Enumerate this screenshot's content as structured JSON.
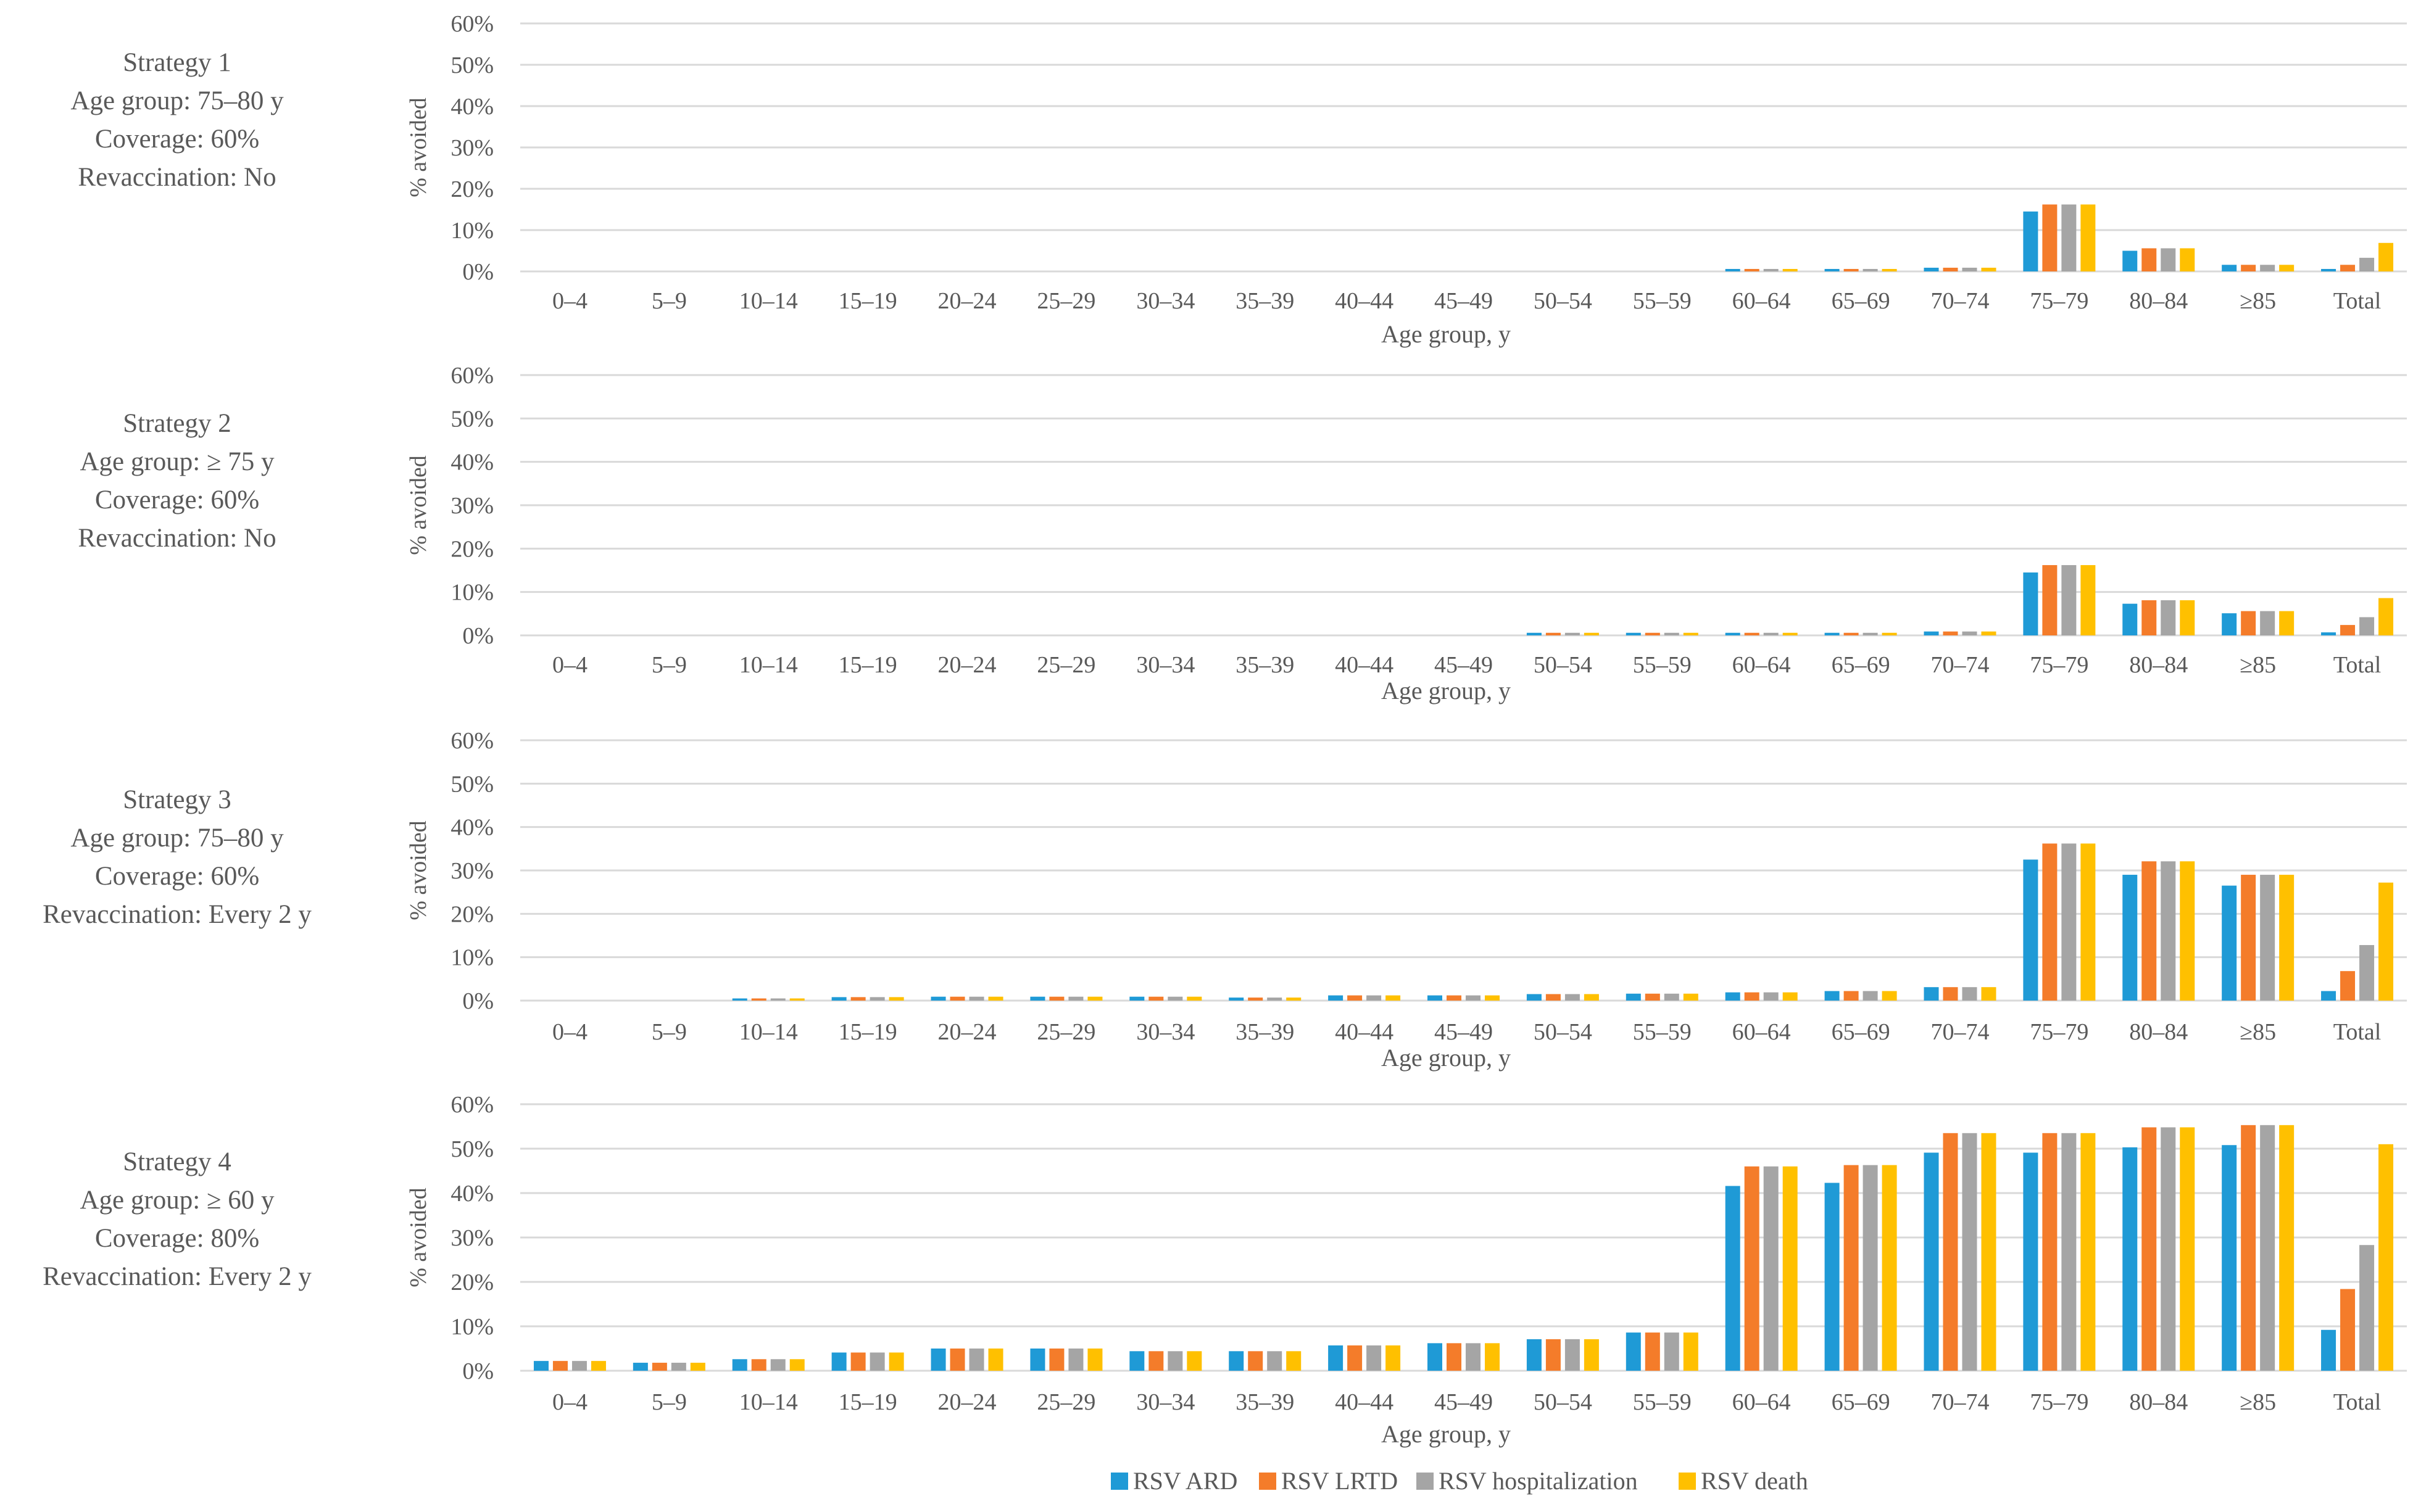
{
  "chart_data": [
    {
      "type": "bar",
      "strategy_label": [
        "Strategy 1",
        "Age group: 75–80 y",
        "Coverage: 60%",
        "Revaccination: No"
      ],
      "xlabel": "Age group, y",
      "ylabel": "% avoided",
      "ylim": [
        0,
        60
      ],
      "yticks": [
        "0%",
        "10%",
        "20%",
        "30%",
        "40%",
        "50%",
        "60%"
      ],
      "grid": true,
      "categories": [
        "0–4",
        "5–9",
        "10–14",
        "15–19",
        "20–24",
        "25–29",
        "30–34",
        "35–39",
        "40–44",
        "45–49",
        "50–54",
        "55–59",
        "60–64",
        "65–69",
        "70–74",
        "75–79",
        "80–84",
        "≥85",
        "Total"
      ],
      "series": [
        {
          "name": "RSV ARD",
          "values": [
            0,
            0,
            0,
            0,
            0,
            0,
            0,
            0,
            0,
            0,
            0,
            0,
            0.6,
            0.6,
            0.9,
            14.5,
            5.0,
            1.6,
            0.6
          ]
        },
        {
          "name": "RSV LRTD",
          "values": [
            0,
            0,
            0,
            0,
            0,
            0,
            0,
            0,
            0,
            0,
            0,
            0,
            0.6,
            0.6,
            0.9,
            16.2,
            5.6,
            1.6,
            1.6
          ]
        },
        {
          "name": "RSV hospitalization",
          "values": [
            0,
            0,
            0,
            0,
            0,
            0,
            0,
            0,
            0,
            0,
            0,
            0,
            0.6,
            0.6,
            0.9,
            16.2,
            5.6,
            1.6,
            3.3
          ]
        },
        {
          "name": "RSV death",
          "values": [
            0,
            0,
            0,
            0,
            0,
            0,
            0,
            0,
            0,
            0,
            0,
            0,
            0.6,
            0.6,
            0.9,
            16.2,
            5.6,
            1.6,
            6.9
          ]
        }
      ]
    },
    {
      "type": "bar",
      "strategy_label": [
        "Strategy 2",
        "Age group: ≥ 75 y",
        "Coverage: 60%",
        "Revaccination: No"
      ],
      "xlabel": "Age group, y",
      "ylabel": "% avoided",
      "ylim": [
        0,
        60
      ],
      "yticks": [
        "0%",
        "10%",
        "20%",
        "30%",
        "40%",
        "50%",
        "60%"
      ],
      "grid": true,
      "categories": [
        "0–4",
        "5–9",
        "10–14",
        "15–19",
        "20–24",
        "25–29",
        "30–34",
        "35–39",
        "40–44",
        "45–49",
        "50–54",
        "55–59",
        "60–64",
        "65–69",
        "70–74",
        "75–79",
        "80–84",
        "≥85",
        "Total"
      ],
      "series": [
        {
          "name": "RSV ARD",
          "values": [
            0,
            0,
            0,
            0,
            0,
            0,
            0,
            0,
            0,
            0,
            0.6,
            0.6,
            0.6,
            0.6,
            0.9,
            14.5,
            7.3,
            5.1,
            0.7
          ]
        },
        {
          "name": "RSV LRTD",
          "values": [
            0,
            0,
            0,
            0,
            0,
            0,
            0,
            0,
            0,
            0,
            0.6,
            0.6,
            0.6,
            0.6,
            0.9,
            16.2,
            8.1,
            5.6,
            2.4
          ]
        },
        {
          "name": "RSV hospitalization",
          "values": [
            0,
            0,
            0,
            0,
            0,
            0,
            0,
            0,
            0,
            0,
            0.6,
            0.6,
            0.6,
            0.6,
            0.9,
            16.2,
            8.1,
            5.6,
            4.2
          ]
        },
        {
          "name": "RSV death",
          "values": [
            0,
            0,
            0,
            0,
            0,
            0,
            0,
            0,
            0,
            0,
            0.6,
            0.6,
            0.6,
            0.6,
            0.9,
            16.2,
            8.1,
            5.6,
            8.6
          ]
        }
      ]
    },
    {
      "type": "bar",
      "strategy_label": [
        "Strategy 3",
        "Age group: 75–80 y",
        "Coverage: 60%",
        "Revaccination: Every 2 y"
      ],
      "xlabel": "Age group, y",
      "ylabel": "% avoided",
      "ylim": [
        0,
        60
      ],
      "yticks": [
        "0%",
        "10%",
        "20%",
        "30%",
        "40%",
        "50%",
        "60%"
      ],
      "grid": true,
      "categories": [
        "0–4",
        "5–9",
        "10–14",
        "15–19",
        "20–24",
        "25–29",
        "30–34",
        "35–39",
        "40–44",
        "45–49",
        "50–54",
        "55–59",
        "60–64",
        "65–69",
        "70–74",
        "75–79",
        "80–84",
        "≥85",
        "Total"
      ],
      "series": [
        {
          "name": "RSV ARD",
          "values": [
            0,
            0,
            0.5,
            0.8,
            0.9,
            0.9,
            0.9,
            0.7,
            1.2,
            1.2,
            1.5,
            1.6,
            1.9,
            2.2,
            3.1,
            32.5,
            29.0,
            26.5,
            2.2
          ]
        },
        {
          "name": "RSV LRTD",
          "values": [
            0,
            0,
            0.5,
            0.8,
            0.9,
            0.9,
            0.9,
            0.7,
            1.2,
            1.2,
            1.5,
            1.6,
            1.9,
            2.2,
            3.1,
            36.2,
            32.1,
            29.0,
            6.8
          ]
        },
        {
          "name": "RSV hospitalization",
          "values": [
            0,
            0,
            0.5,
            0.8,
            0.9,
            0.9,
            0.9,
            0.7,
            1.2,
            1.2,
            1.5,
            1.6,
            1.9,
            2.2,
            3.1,
            36.2,
            32.1,
            29.0,
            12.8
          ]
        },
        {
          "name": "RSV death",
          "values": [
            0,
            0,
            0.5,
            0.8,
            0.9,
            0.9,
            0.9,
            0.7,
            1.2,
            1.2,
            1.5,
            1.6,
            1.9,
            2.2,
            3.1,
            36.2,
            32.1,
            29.0,
            27.2
          ]
        }
      ]
    },
    {
      "type": "bar",
      "strategy_label": [
        "Strategy 4",
        "Age group: ≥ 60 y",
        "Coverage: 80%",
        "Revaccination: Every 2 y"
      ],
      "xlabel": "Age group, y",
      "ylabel": "% avoided",
      "ylim": [
        0,
        60
      ],
      "yticks": [
        "0%",
        "10%",
        "20%",
        "30%",
        "40%",
        "50%",
        "60%"
      ],
      "grid": true,
      "categories": [
        "0–4",
        "5–9",
        "10–14",
        "15–19",
        "20–24",
        "25–29",
        "30–34",
        "35–39",
        "40–44",
        "45–49",
        "50–54",
        "55–59",
        "60–64",
        "65–69",
        "70–74",
        "75–79",
        "80–84",
        "≥85",
        "Total"
      ],
      "series": [
        {
          "name": "RSV ARD",
          "values": [
            2.2,
            1.8,
            2.6,
            4.1,
            5.0,
            5.0,
            4.4,
            4.4,
            5.7,
            6.2,
            7.1,
            8.6,
            41.6,
            42.3,
            49.1,
            49.1,
            50.3,
            50.8,
            9.2
          ]
        },
        {
          "name": "RSV LRTD",
          "values": [
            2.2,
            1.8,
            2.6,
            4.1,
            5.0,
            5.0,
            4.4,
            4.4,
            5.7,
            6.2,
            7.1,
            8.6,
            46.0,
            46.3,
            53.5,
            53.5,
            54.8,
            55.3,
            18.4
          ]
        },
        {
          "name": "RSV hospitalization",
          "values": [
            2.2,
            1.8,
            2.6,
            4.1,
            5.0,
            5.0,
            4.4,
            4.4,
            5.7,
            6.2,
            7.1,
            8.6,
            46.0,
            46.3,
            53.5,
            53.5,
            54.8,
            55.3,
            28.3
          ]
        },
        {
          "name": "RSV death",
          "values": [
            2.2,
            1.8,
            2.6,
            4.1,
            5.0,
            5.0,
            4.4,
            4.4,
            5.7,
            6.2,
            7.1,
            8.6,
            46.0,
            46.3,
            53.5,
            53.5,
            54.8,
            55.3,
            51.0
          ]
        }
      ]
    }
  ],
  "legend": {
    "placement": "bottom-center",
    "items": [
      {
        "label": "RSV ARD",
        "color": "#1f9ad6"
      },
      {
        "label": "RSV LRTD",
        "color": "#f47c2a"
      },
      {
        "label": "RSV hospitalization",
        "color": "#a5a5a5"
      },
      {
        "label": "RSV death",
        "color": "#ffc000"
      }
    ]
  },
  "colors": {
    "gridline": "#d9d9d9",
    "text": "#595959"
  }
}
